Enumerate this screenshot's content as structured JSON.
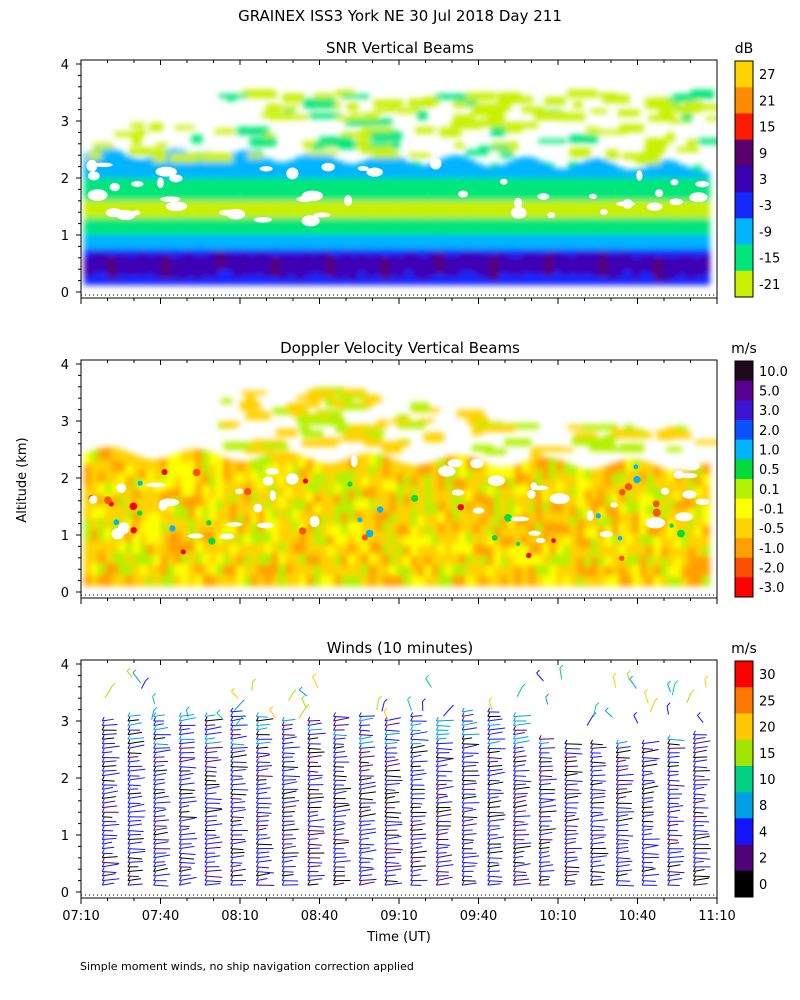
{
  "figure_title": "GRAINEX ISS3 York NE  30 Jul 2018 Day 211",
  "y_axis_label": "Altitude (km)",
  "x_axis_label": "Time (UT)",
  "footnote": "Simple moment winds, no ship navigation correction applied",
  "chart_data": [
    {
      "type": "heatmap",
      "title": "SNR Vertical Beams",
      "colorbar_unit": "dB",
      "colorbar_labels": [
        "27",
        "21",
        "15",
        "9",
        "3",
        "-3",
        "-9",
        "-15",
        "-21"
      ],
      "colorbar_colors": [
        "#ffd200",
        "#ff8c00",
        "#ff1a00",
        "#5a006e",
        "#3c00b4",
        "#1428ff",
        "#00b4ff",
        "#00e67a",
        "#c8f000"
      ],
      "y_ticks": [
        "0",
        "1",
        "2",
        "3",
        "4"
      ],
      "ylim": [
        0,
        4
      ],
      "xlim": [
        "07:10",
        "11:10"
      ],
      "data_top_km": [
        2.5,
        3.0,
        3.6
      ]
    },
    {
      "type": "heatmap",
      "title": "Doppler Velocity Vertical Beams",
      "colorbar_unit": "m/s",
      "colorbar_labels": [
        "10.0",
        "5.0",
        "3.0",
        "2.0",
        "1.0",
        "0.5",
        "0.1",
        "-0.1",
        "-0.5",
        "-1.0",
        "-2.0",
        "-3.0"
      ],
      "colorbar_colors": [
        "#1e0a1e",
        "#5a0090",
        "#3c14d2",
        "#0a50ff",
        "#00b4ff",
        "#00dc3c",
        "#b4f000",
        "#ffff00",
        "#ffd200",
        "#ffa000",
        "#ff5000",
        "#ff0000"
      ],
      "y_ticks": [
        "0",
        "1",
        "2",
        "3",
        "4"
      ],
      "ylim": [
        0,
        4
      ],
      "xlim": [
        "07:10",
        "11:10"
      ]
    },
    {
      "type": "scatter",
      "title": "Winds (10 minutes)",
      "colorbar_unit": "m/s",
      "colorbar_labels": [
        "30",
        "25",
        "20",
        "15",
        "10",
        "8",
        "4",
        "2",
        "0"
      ],
      "colorbar_colors": [
        "#ff0000",
        "#ff7800",
        "#ffc800",
        "#a0e600",
        "#00d282",
        "#00a0e6",
        "#1414ff",
        "#500078",
        "#000000"
      ],
      "y_ticks": [
        "0",
        "1",
        "2",
        "3",
        "4"
      ],
      "ylim": [
        0,
        4
      ],
      "x_ticks": [
        "07:10",
        "07:40",
        "08:10",
        "08:40",
        "09:10",
        "09:40",
        "10:10",
        "10:40",
        "11:10"
      ],
      "xlim": [
        "07:10",
        "11:10"
      ],
      "profile_count": 24,
      "max_height_km": 3.2
    }
  ]
}
